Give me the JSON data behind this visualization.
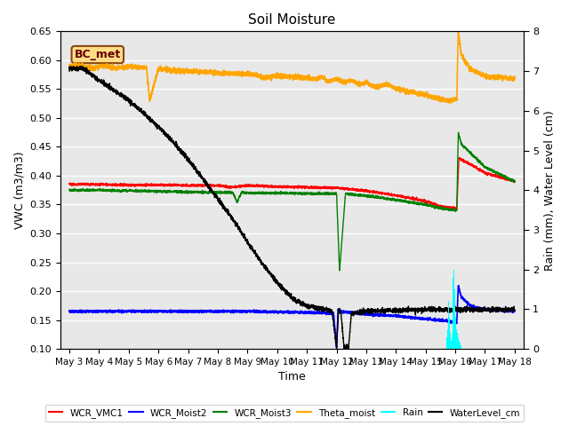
{
  "title": "Soil Moisture",
  "xlabel": "Time",
  "ylabel_left": "VWC (m3/m3)",
  "ylabel_right": "Rain (mm), Water Level (cm)",
  "ylim_left": [
    0.1,
    0.65
  ],
  "ylim_right": [
    0.0,
    8.0
  ],
  "yticks_left": [
    0.1,
    0.15,
    0.2,
    0.25,
    0.3,
    0.35,
    0.4,
    0.45,
    0.5,
    0.55,
    0.6,
    0.65
  ],
  "yticks_right": [
    0.0,
    1.0,
    2.0,
    3.0,
    4.0,
    5.0,
    6.0,
    7.0,
    8.0
  ],
  "background_color": "#e8e8e8",
  "grid_color": "#ffffff",
  "annotation_text": "BC_met",
  "annotation_box_color": "#ffdd88",
  "annotation_border_color": "#8B4513",
  "legend_labels": [
    "WCR_VMC1",
    "WCR_Moist2",
    "WCR_Moist3",
    "Theta_moist",
    "Rain",
    "WaterLevel_cm"
  ],
  "legend_colors": [
    "red",
    "blue",
    "green",
    "orange",
    "cyan",
    "black"
  ],
  "tick_labels": [
    "May 3",
    "May 4",
    "May 5",
    "May 6",
    "May 7",
    "May 8",
    "May 9",
    "May 10",
    "May 11",
    "May 12",
    "May 13",
    "May 14",
    "May 15",
    "May 16",
    "May 17",
    "May 18"
  ]
}
